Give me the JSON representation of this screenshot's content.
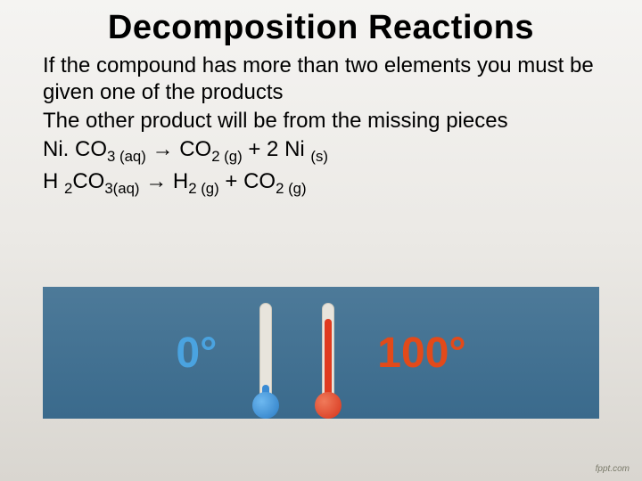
{
  "title": "Decomposition Reactions",
  "paragraphs": {
    "p1": "If the compound has more than two elements you must be given one of the products",
    "p2": "The other product will be from the missing pieces"
  },
  "equations": {
    "eq1": {
      "lhs_pre": "Ni. CO",
      "lhs_sub1": "3 (aq)",
      "arrow": " → ",
      "rhs_a": "CO",
      "rhs_a_sub": "2 (g)",
      "plus1": " + 2 Ni ",
      "rhs_b_sub": "(s)"
    },
    "eq2": {
      "lhs_a": "H ",
      "lhs_a_sub": "2",
      "lhs_b": "CO",
      "lhs_b_sub": "3(aq)",
      "arrow": " → ",
      "rhs_a": "H",
      "rhs_a_sub": "2 (g)",
      "plus1": " + CO",
      "rhs_b_sub": "2 (g)"
    }
  },
  "thermo": {
    "cold_label": "0°",
    "hot_label": "100°",
    "band_color": "#3a6a8c",
    "cold_color": "#4aa3e0",
    "hot_color": "#e24a1a"
  },
  "footer": "fppt.com"
}
